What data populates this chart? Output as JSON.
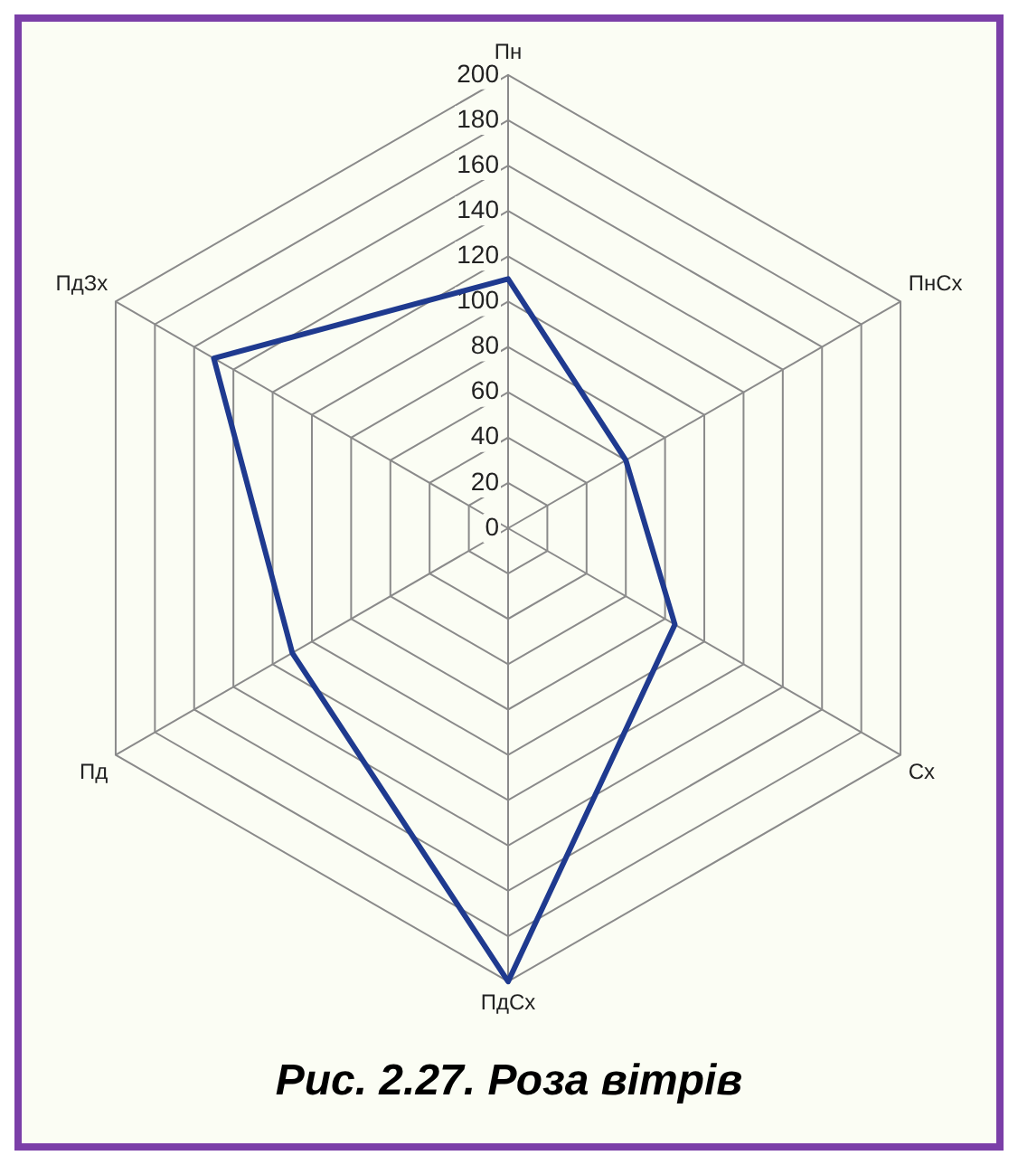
{
  "chart_data": {
    "type": "radar",
    "title": "Рис. 2.27. Роза вітрів",
    "categories": [
      "Пн",
      "ПнСх",
      "Сх",
      "ПдСх",
      "Пд",
      "ПдЗх"
    ],
    "series": [
      {
        "color": "#1f3a8f",
        "values": [
          110,
          60,
          85,
          200,
          110,
          150
        ]
      }
    ],
    "ylim": [
      0,
      200
    ],
    "yticks": [
      0,
      20,
      40,
      60,
      80,
      100,
      120,
      140,
      160,
      180,
      200
    ],
    "grid": true,
    "legend": false,
    "marker": "none",
    "line_style": "solid"
  }
}
